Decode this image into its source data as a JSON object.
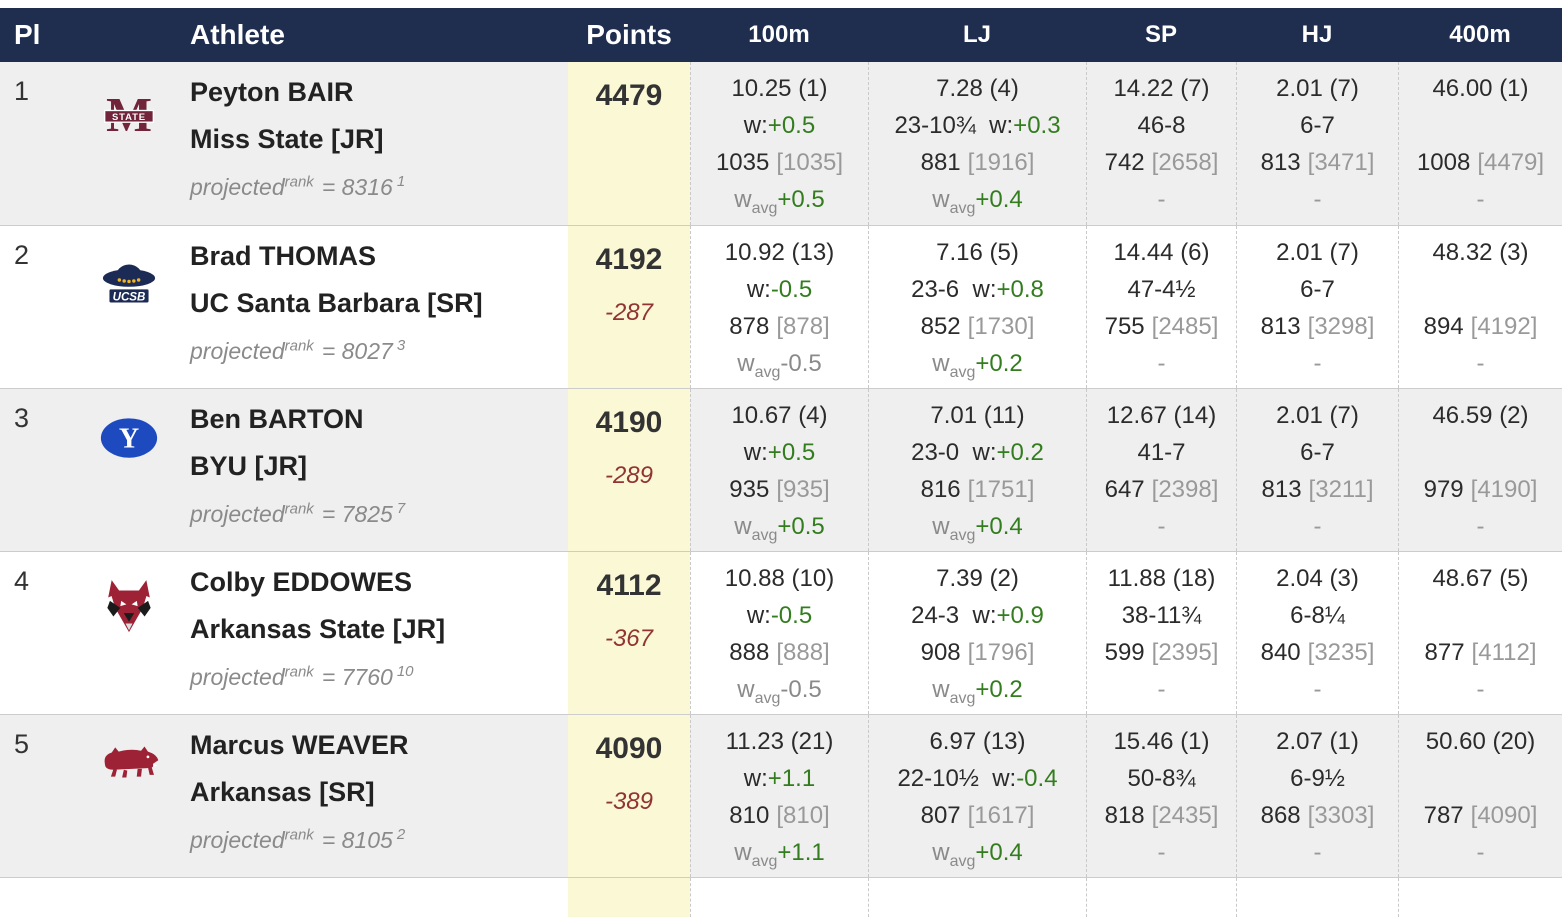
{
  "header": {
    "pl": "Pl",
    "athlete": "Athlete",
    "points": "Points",
    "events": [
      "100m",
      "LJ",
      "SP",
      "HJ",
      "400m"
    ]
  },
  "labels": {
    "wind_label": "w:",
    "avg_wind_prefix": "w",
    "avg_wind_sub": "avg",
    "dash": "-",
    "projected_word": "projected",
    "projected_sup": "rank",
    "equals": "="
  },
  "colors": {
    "header_bg": "#1f2e4f",
    "points_col_bg": "#fbf8d6",
    "row_alt_bg": "#efefef",
    "positive_green": "#337d1f",
    "deficit_red": "#913434",
    "muted_gray": "#8a8a8a"
  },
  "rows": [
    {
      "place": "1",
      "logo": "miss-state",
      "name": "Peyton BAIR",
      "school": "Miss State [JR]",
      "projected": {
        "value": "8316",
        "note": "1"
      },
      "points": "4479",
      "deficit": "",
      "events": [
        {
          "mark": "10.25",
          "rank": "(1)",
          "imp": "",
          "wind": "+0.5",
          "pts": "1035",
          "cum": "[1035]",
          "avg": "+0.5"
        },
        {
          "mark": "7.28",
          "rank": "(4)",
          "imp": "23-10¾",
          "wind": "+0.3",
          "pts": "881",
          "cum": "[1916]",
          "avg": "+0.4"
        },
        {
          "mark": "14.22",
          "rank": "(7)",
          "imp": "46-8",
          "wind": "",
          "pts": "742",
          "cum": "[2658]",
          "avg": "-"
        },
        {
          "mark": "2.01",
          "rank": "(7)",
          "imp": "6-7",
          "wind": "",
          "pts": "813",
          "cum": "[3471]",
          "avg": "-"
        },
        {
          "mark": "46.00",
          "rank": "(1)",
          "imp": "",
          "wind": "",
          "pts": "1008",
          "cum": "[4479]",
          "avg": "-"
        }
      ]
    },
    {
      "place": "2",
      "logo": "ucsb",
      "name": "Brad THOMAS",
      "school": "UC Santa Barbara [SR]",
      "projected": {
        "value": "8027",
        "note": "3"
      },
      "points": "4192",
      "deficit": "-287",
      "events": [
        {
          "mark": "10.92",
          "rank": "(13)",
          "imp": "",
          "wind": "-0.5",
          "pts": "878",
          "cum": "[878]",
          "avg": "-0.5"
        },
        {
          "mark": "7.16",
          "rank": "(5)",
          "imp": "23-6",
          "wind": "+0.8",
          "pts": "852",
          "cum": "[1730]",
          "avg": "+0.2"
        },
        {
          "mark": "14.44",
          "rank": "(6)",
          "imp": "47-4½",
          "wind": "",
          "pts": "755",
          "cum": "[2485]",
          "avg": "-"
        },
        {
          "mark": "2.01",
          "rank": "(7)",
          "imp": "6-7",
          "wind": "",
          "pts": "813",
          "cum": "[3298]",
          "avg": "-"
        },
        {
          "mark": "48.32",
          "rank": "(3)",
          "imp": "",
          "wind": "",
          "pts": "894",
          "cum": "[4192]",
          "avg": "-"
        }
      ]
    },
    {
      "place": "3",
      "logo": "byu",
      "name": "Ben BARTON",
      "school": "BYU [JR]",
      "projected": {
        "value": "7825",
        "note": "7"
      },
      "points": "4190",
      "deficit": "-289",
      "events": [
        {
          "mark": "10.67",
          "rank": "(4)",
          "imp": "",
          "wind": "+0.5",
          "pts": "935",
          "cum": "[935]",
          "avg": "+0.5"
        },
        {
          "mark": "7.01",
          "rank": "(11)",
          "imp": "23-0",
          "wind": "+0.2",
          "pts": "816",
          "cum": "[1751]",
          "avg": "+0.4"
        },
        {
          "mark": "12.67",
          "rank": "(14)",
          "imp": "41-7",
          "wind": "",
          "pts": "647",
          "cum": "[2398]",
          "avg": "-"
        },
        {
          "mark": "2.01",
          "rank": "(7)",
          "imp": "6-7",
          "wind": "",
          "pts": "813",
          "cum": "[3211]",
          "avg": "-"
        },
        {
          "mark": "46.59",
          "rank": "(2)",
          "imp": "",
          "wind": "",
          "pts": "979",
          "cum": "[4190]",
          "avg": "-"
        }
      ]
    },
    {
      "place": "4",
      "logo": "arkansas-state",
      "name": "Colby EDDOWES",
      "school": "Arkansas State [JR]",
      "projected": {
        "value": "7760",
        "note": "10"
      },
      "points": "4112",
      "deficit": "-367",
      "events": [
        {
          "mark": "10.88",
          "rank": "(10)",
          "imp": "",
          "wind": "-0.5",
          "pts": "888",
          "cum": "[888]",
          "avg": "-0.5"
        },
        {
          "mark": "7.39",
          "rank": "(2)",
          "imp": "24-3",
          "wind": "+0.9",
          "pts": "908",
          "cum": "[1796]",
          "avg": "+0.2"
        },
        {
          "mark": "11.88",
          "rank": "(18)",
          "imp": "38-11¾",
          "wind": "",
          "pts": "599",
          "cum": "[2395]",
          "avg": "-"
        },
        {
          "mark": "2.04",
          "rank": "(3)",
          "imp": "6-8¼",
          "wind": "",
          "pts": "840",
          "cum": "[3235]",
          "avg": "-"
        },
        {
          "mark": "48.67",
          "rank": "(5)",
          "imp": "",
          "wind": "",
          "pts": "877",
          "cum": "[4112]",
          "avg": "-"
        }
      ]
    },
    {
      "place": "5",
      "logo": "arkansas",
      "name": "Marcus WEAVER",
      "school": "Arkansas [SR]",
      "projected": {
        "value": "8105",
        "note": "2"
      },
      "points": "4090",
      "deficit": "-389",
      "events": [
        {
          "mark": "11.23",
          "rank": "(21)",
          "imp": "",
          "wind": "+1.1",
          "pts": "810",
          "cum": "[810]",
          "avg": "+1.1"
        },
        {
          "mark": "6.97",
          "rank": "(13)",
          "imp": "22-10½",
          "wind": "-0.4",
          "pts": "807",
          "cum": "[1617]",
          "avg": "+0.4"
        },
        {
          "mark": "15.46",
          "rank": "(1)",
          "imp": "50-8¾",
          "wind": "",
          "pts": "818",
          "cum": "[2435]",
          "avg": "-"
        },
        {
          "mark": "2.07",
          "rank": "(1)",
          "imp": "6-9½",
          "wind": "",
          "pts": "868",
          "cum": "[3303]",
          "avg": "-"
        },
        {
          "mark": "50.60",
          "rank": "(20)",
          "imp": "",
          "wind": "",
          "pts": "787",
          "cum": "[4090]",
          "avg": "-"
        }
      ]
    }
  ]
}
